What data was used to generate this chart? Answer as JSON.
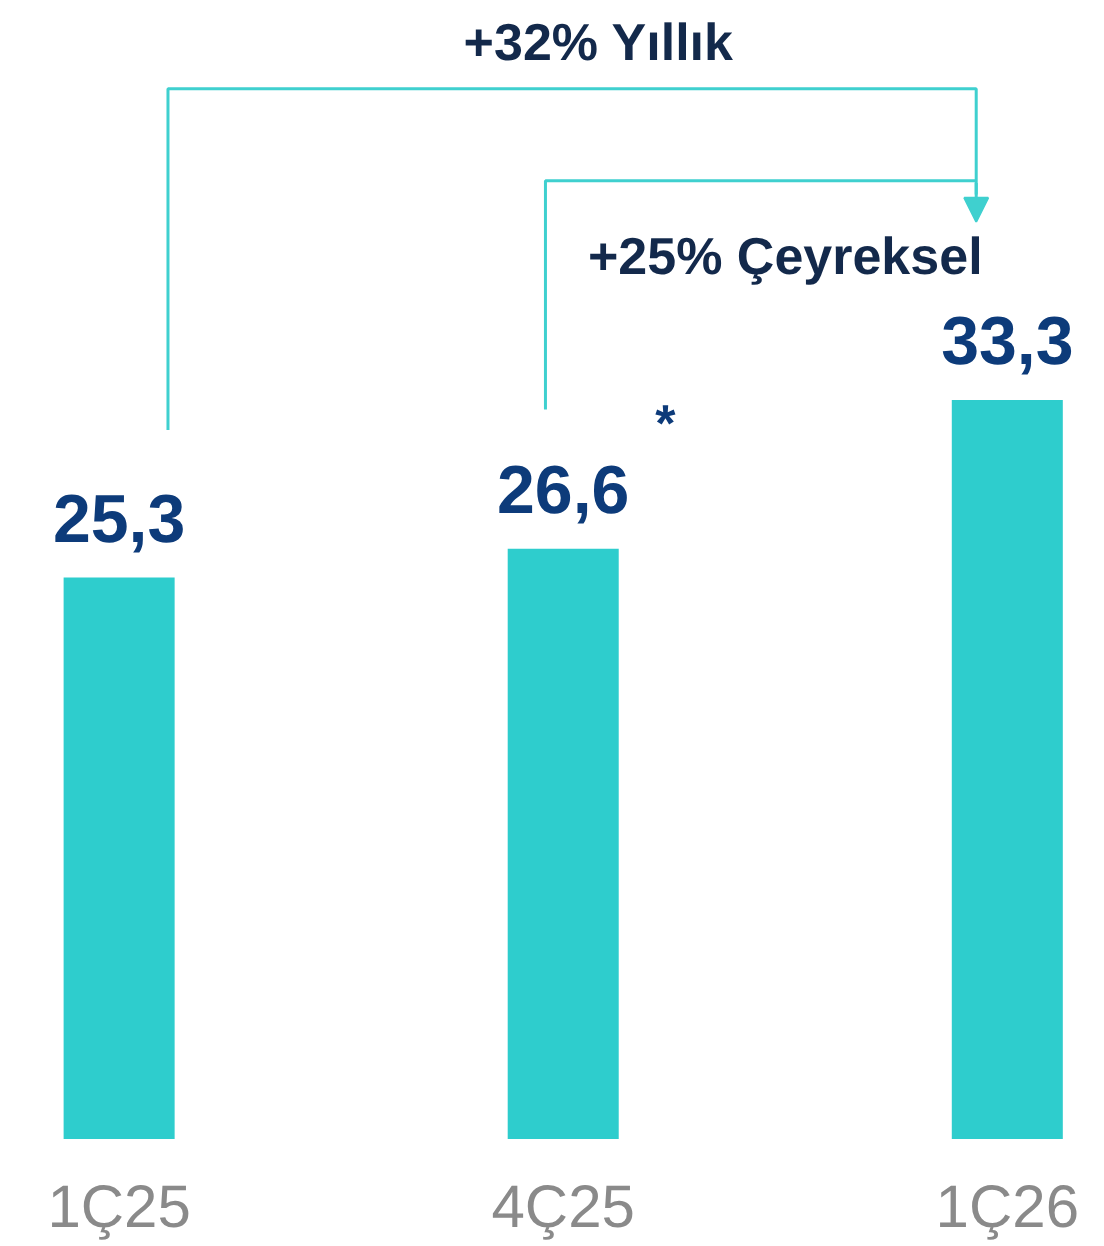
{
  "chart_data": {
    "type": "bar",
    "categories": [
      "1Ç25",
      "4Ç25",
      "1Ç26"
    ],
    "values": [
      25.3,
      26.6,
      33.3
    ],
    "color": "#2ecdcd",
    "value_labels": [
      "25,3",
      "26,6",
      "33,3"
    ],
    "tick_labels": "x",
    "grid": false,
    "annotations": [
      "+32% Yıllık",
      "+25% Çeyreksel",
      "*"
    ]
  }
}
